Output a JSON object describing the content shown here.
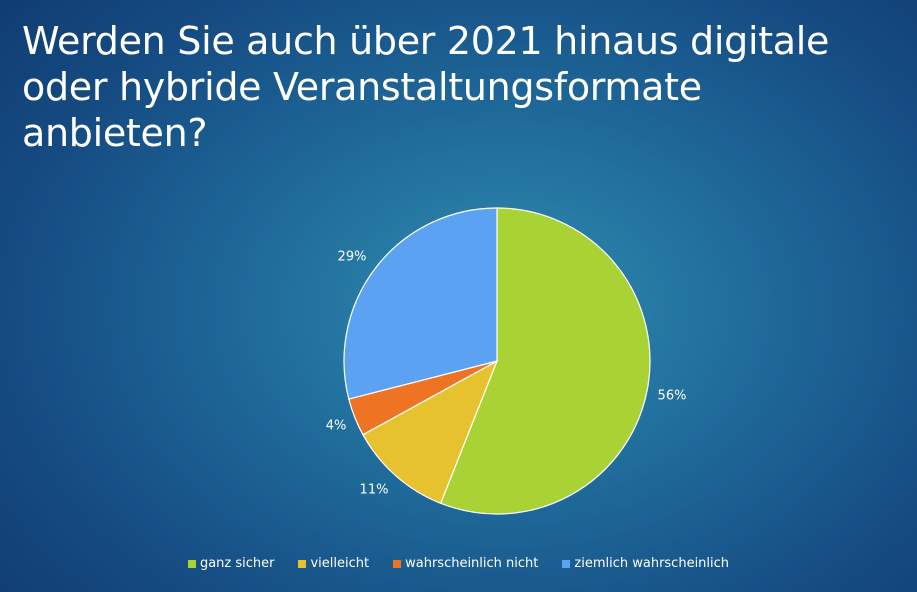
{
  "title_lines": [
    "Werden Sie auch über 2021 hinaus digitale",
    "oder hybride Veranstaltungsformate",
    "anbieten?"
  ],
  "chart_data": {
    "type": "pie",
    "title": "Werden Sie auch über 2021 hinaus digitale oder hybride Veranstaltungsformate anbieten?",
    "slices": [
      {
        "name": "ganz sicher",
        "value": 56,
        "label": "56%",
        "color": "#a9d334"
      },
      {
        "name": "vielleicht",
        "value": 11,
        "label": "11%",
        "color": "#e6c22f"
      },
      {
        "name": "wahrscheinlich nicht",
        "value": 4,
        "label": "4%",
        "color": "#ee7423"
      },
      {
        "name": "ziemlich wahrscheinlich",
        "value": 29,
        "label": "29%",
        "color": "#5ca2f2"
      }
    ],
    "legend_position": "bottom"
  }
}
